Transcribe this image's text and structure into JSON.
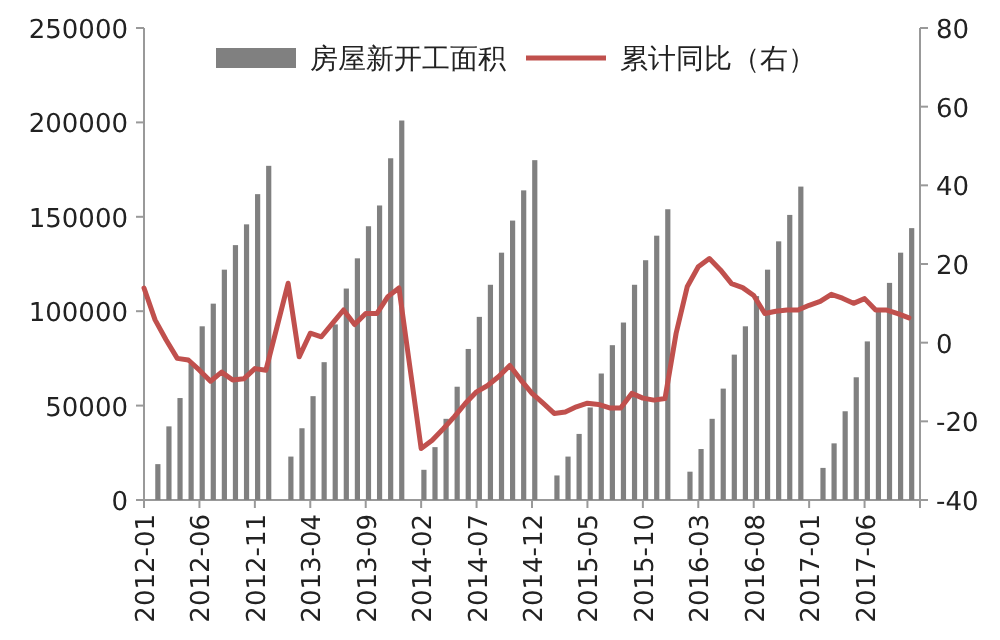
{
  "chart_data": {
    "type": "bar",
    "categories": [
      "2012-01",
      null,
      null,
      null,
      null,
      "2012-06",
      null,
      null,
      null,
      null,
      "2012-11",
      null,
      null,
      null,
      null,
      "2013-04",
      null,
      null,
      null,
      null,
      "2013-09",
      null,
      null,
      null,
      null,
      "2014-02",
      null,
      null,
      null,
      null,
      "2014-07",
      null,
      null,
      null,
      null,
      "2014-12",
      null,
      null,
      null,
      null,
      "2015-05",
      null,
      null,
      null,
      null,
      "2015-10",
      null,
      null,
      null,
      null,
      "2016-03",
      null,
      null,
      null,
      null,
      "2016-08",
      null,
      null,
      null,
      null,
      "2017-01",
      null,
      null,
      null,
      null,
      "2017-06",
      null,
      null,
      null,
      null
    ],
    "series": [
      {
        "name": "房屋新开工面积",
        "color": "#808080",
        "values": [
          null,
          19000,
          39000,
          54000,
          72000,
          92000,
          104000,
          122000,
          135000,
          146000,
          162000,
          177000,
          null,
          23000,
          38000,
          55000,
          73000,
          93000,
          112000,
          128000,
          145000,
          156000,
          181000,
          201000,
          null,
          16000,
          28000,
          43000,
          60000,
          80000,
          97000,
          114000,
          131000,
          148000,
          164000,
          180000,
          null,
          13000,
          23000,
          35000,
          49000,
          67000,
          82000,
          94000,
          114000,
          127000,
          140000,
          154000,
          null,
          15000,
          27000,
          43000,
          59000,
          77000,
          92000,
          108000,
          122000,
          137000,
          151000,
          166000,
          null,
          17000,
          30000,
          47000,
          65000,
          84000,
          100000,
          115000,
          131000,
          144000
        ]
      },
      {
        "name": "累计同比（右）",
        "type": "line",
        "axis": "y2",
        "color": "#c0504d",
        "values": [
          13.9,
          5.8,
          0.7,
          -4,
          -4.4,
          -7,
          -9.8,
          -7.5,
          -9.5,
          -9.2,
          -6.6,
          -7,
          4,
          15.1,
          -3.6,
          2.4,
          1.5,
          4.9,
          8.3,
          4.6,
          7.4,
          7.4,
          11.7,
          13.9,
          -6.5,
          -26.9,
          -24.8,
          -21.9,
          -18.8,
          -15.4,
          -12.5,
          -10.9,
          -8.6,
          -5.8,
          -9.5,
          -12.9,
          -15.4,
          -18,
          -17.6,
          -16.3,
          -15.4,
          -15.7,
          -16.6,
          -16.6,
          -12.9,
          -14.1,
          -14.6,
          -14.2,
          2.4,
          14.2,
          19.3,
          21.4,
          18.5,
          15,
          14,
          12,
          7.4,
          8,
          8.3,
          8.3,
          9.5,
          10.5,
          12.3,
          11.3,
          10,
          11.2,
          8.3,
          8.3,
          7.4,
          6.3
        ]
      }
    ],
    "ylim": [
      0,
      250000
    ],
    "yticks": [
      0,
      50000,
      100000,
      150000,
      200000,
      250000
    ],
    "y2lim": [
      -40,
      80
    ],
    "y2ticks": [
      -40,
      -20,
      0,
      20,
      40,
      60,
      80
    ],
    "legend": "top",
    "grid": false
  }
}
